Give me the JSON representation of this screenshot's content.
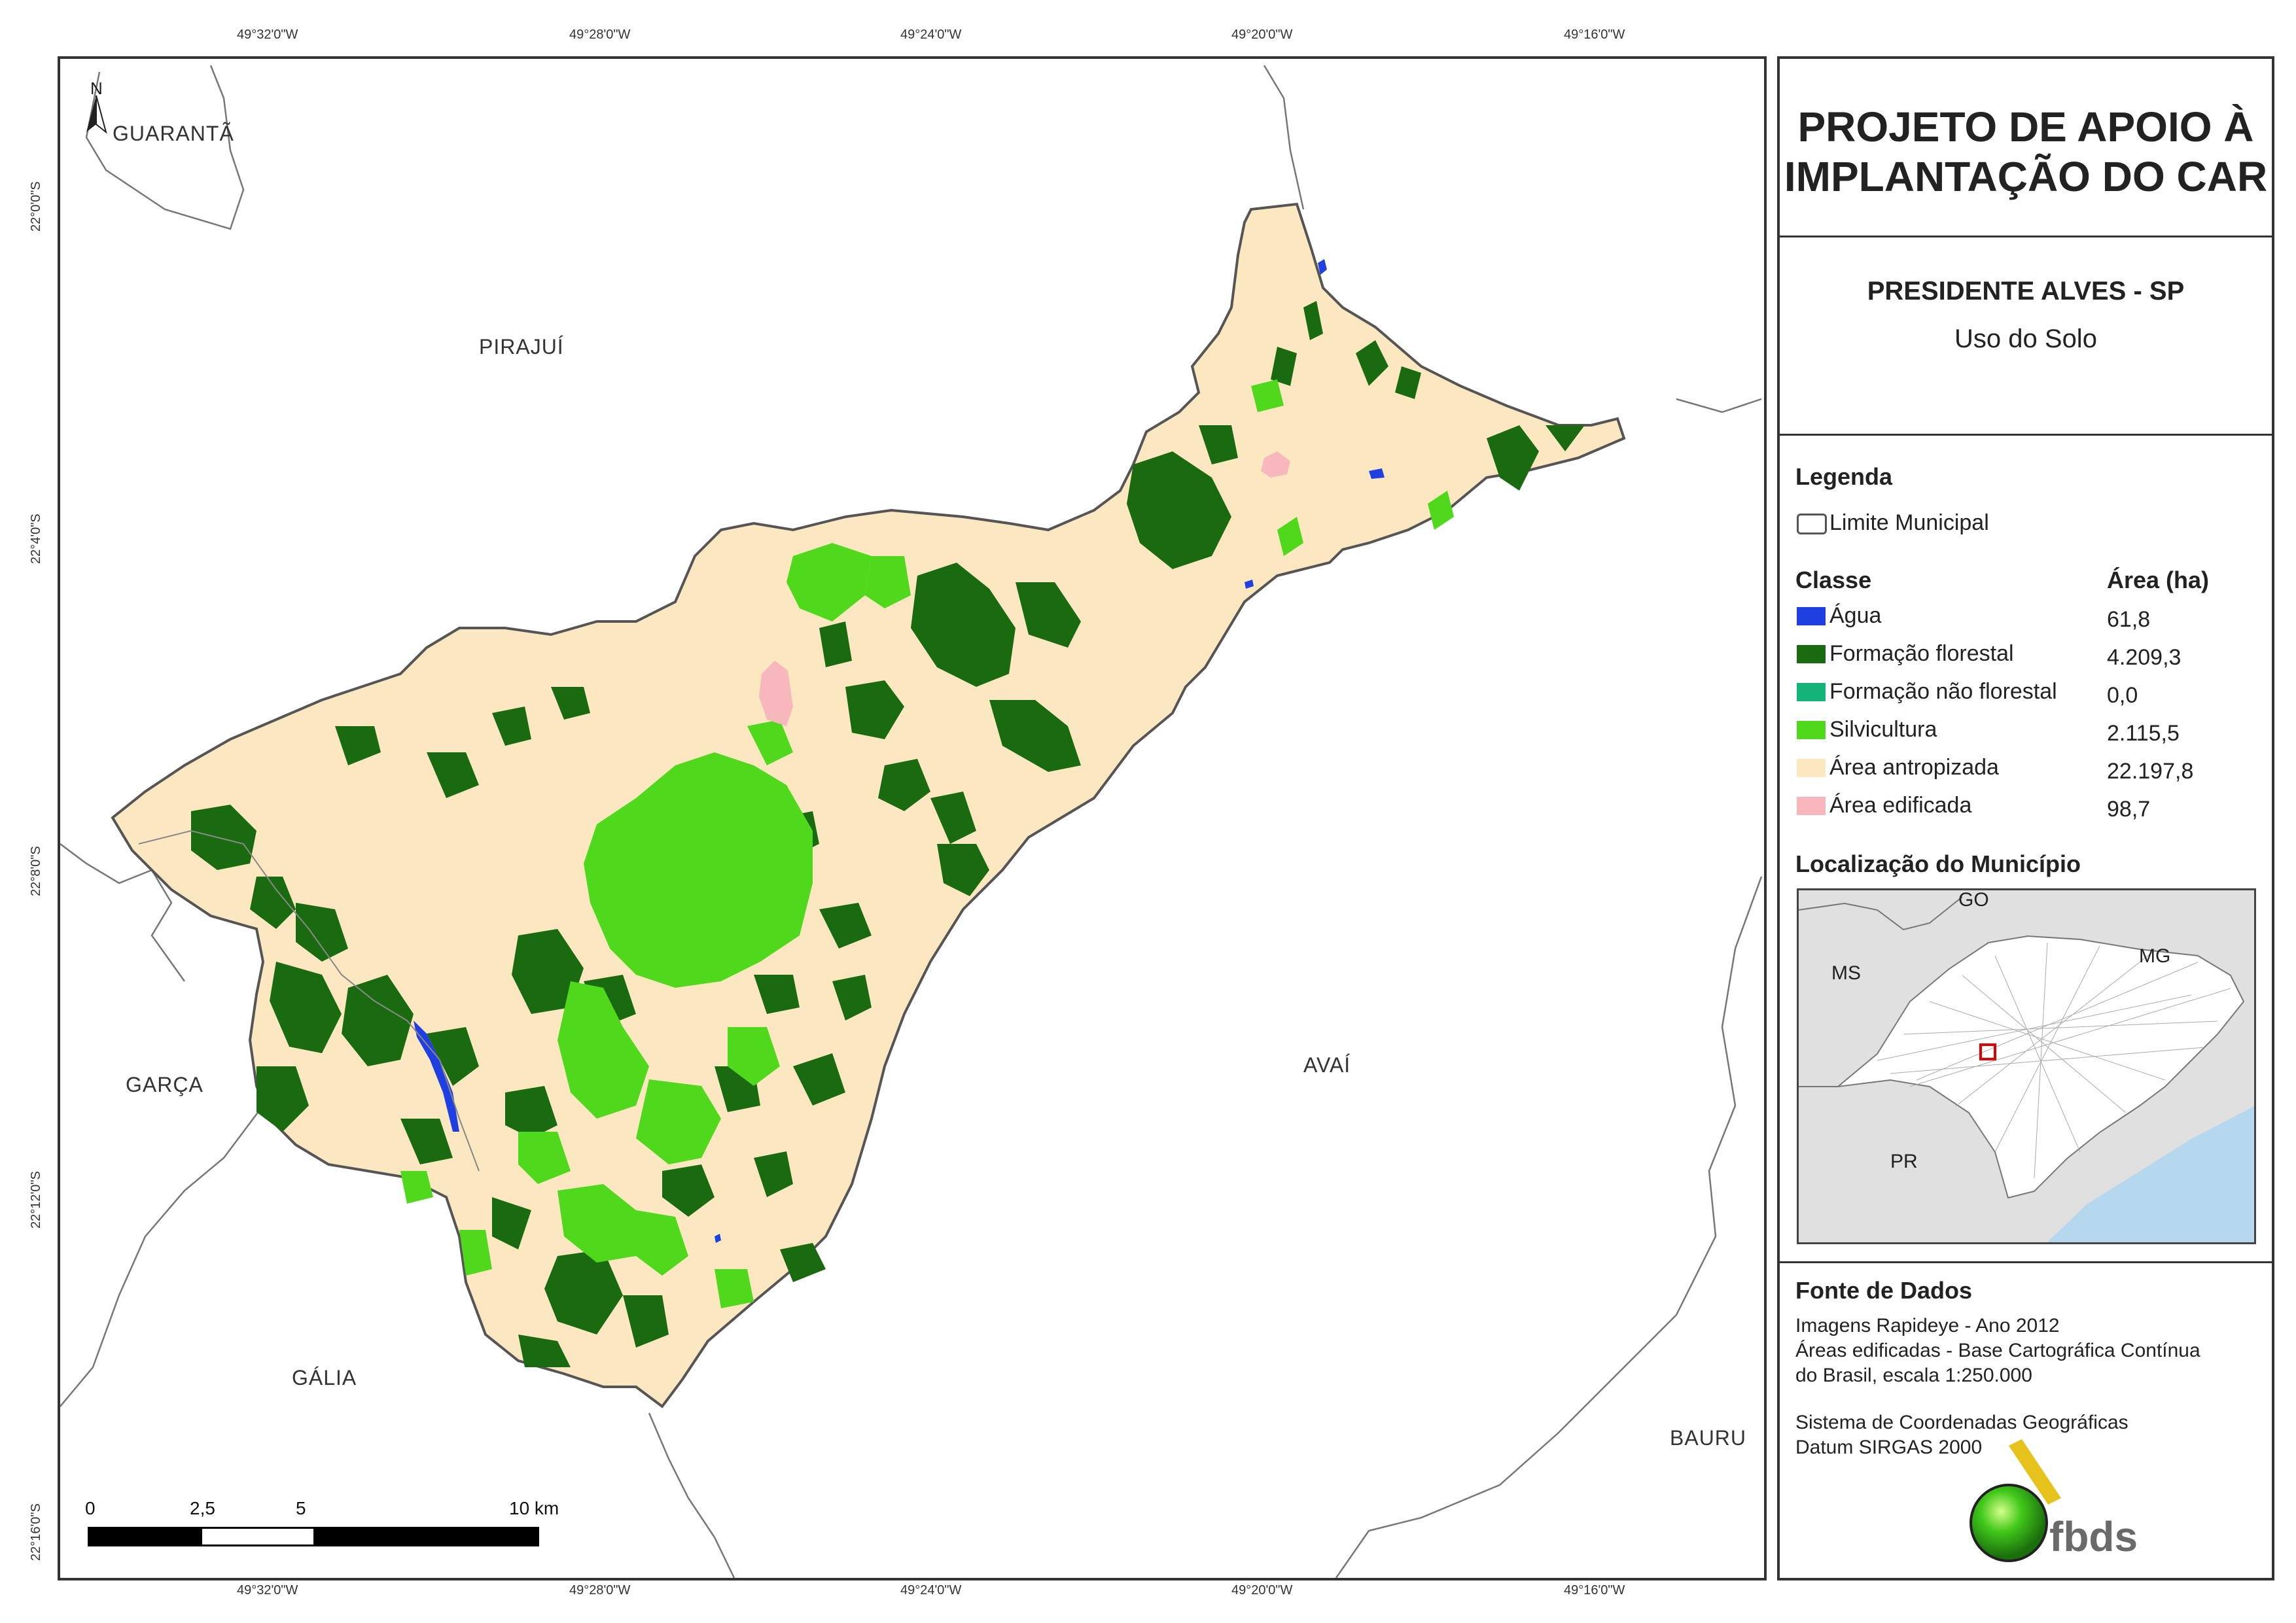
{
  "coordinates": {
    "top": [
      "49°32'0\"W",
      "49°28'0\"W",
      "49°24'0\"W",
      "49°20'0\"W",
      "49°16'0\"W"
    ],
    "bottom": [
      "49°32'0\"W",
      "49°28'0\"W",
      "49°24'0\"W",
      "49°20'0\"W",
      "49°16'0\"W"
    ],
    "left": [
      "22°0'0\"S",
      "22°4'0\"S",
      "22°8'0\"S",
      "22°12'0\"S",
      "22°16'0\"S"
    ]
  },
  "north_arrow": {
    "label": "N"
  },
  "neighbors": {
    "guaranta": "GUARANTÃ",
    "pirajui": "PIRAJUÍ",
    "garca": "GARÇA",
    "avai": "AVAÍ",
    "galia": "GÁLIA",
    "bauru": "BAURU"
  },
  "scale_bar": {
    "labels": [
      "0",
      "2,5",
      "5",
      "10 km"
    ]
  },
  "panel": {
    "title": "PROJETO DE APOIO À IMPLANTAÇÃO DO CAR",
    "municipality": "PRESIDENTE ALVES - SP",
    "theme": "Uso do Solo",
    "legend_heading": "Legenda",
    "boundary_label": "Limite Municipal",
    "class_heading": "Classe",
    "area_heading": "Área (ha)",
    "classes": [
      {
        "name": "Água",
        "area": "61,8",
        "color": "#1f3fe0"
      },
      {
        "name": "Formação florestal",
        "area": "4.209,3",
        "color": "#1a6b10"
      },
      {
        "name": "Formação não florestal",
        "area": "0,0",
        "color": "#14b37a"
      },
      {
        "name": "Silvicultura",
        "area": "2.115,5",
        "color": "#4fd81c"
      },
      {
        "name": "Área antropizada",
        "area": "22.197,8",
        "color": "#fbe7c0"
      },
      {
        "name": "Área edificada",
        "area": "98,7",
        "color": "#f7b8bd"
      }
    ],
    "location_heading": "Localização do Município",
    "inset_labels": {
      "go": "GO",
      "ms": "MS",
      "mg": "MG",
      "pr": "PR"
    },
    "source_heading": "Fonte de Dados",
    "source_lines": [
      "Imagens Rapideye - Ano 2012",
      "Áreas edificadas - Base Cartográfica Contínua",
      "do Brasil, escala 1:250.000"
    ],
    "crs_lines": [
      "Sistema de Coordenadas Geográficas",
      "Datum SIRGAS 2000"
    ],
    "logo_text": "fbds"
  }
}
